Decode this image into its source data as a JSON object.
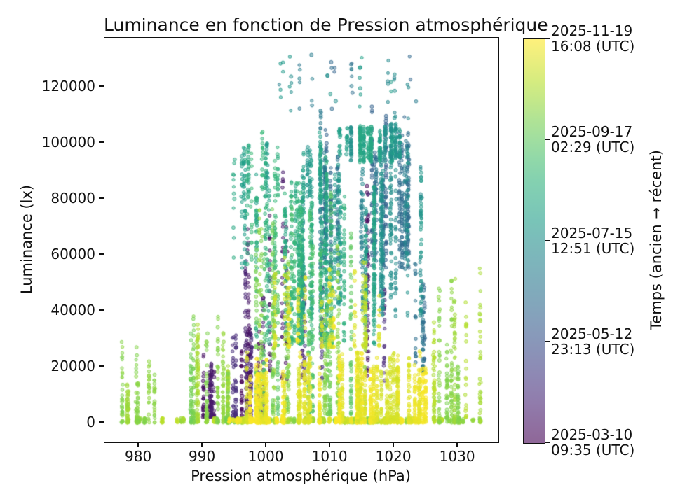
{
  "title": "Luminance en fonction de Pression atmosphérique",
  "chart_data": {
    "type": "scatter",
    "title": "Luminance en fonction de Pression atmosphérique",
    "xlabel": "Pression atmosphérique (hPa)",
    "ylabel": "Luminance (lx)",
    "xlim": [
      974.6,
      1036.36
    ],
    "ylim": [
      -7000,
      137500
    ],
    "xticks": [
      980,
      990,
      1000,
      1010,
      1020,
      1030
    ],
    "yticks": [
      0,
      20000,
      40000,
      60000,
      80000,
      100000,
      120000
    ],
    "grid": false,
    "colorbar": {
      "label": "Temps (ancien → récent)",
      "alpha": 0.6,
      "viridis_stops": [
        "#440154",
        "#482878",
        "#3e4989",
        "#31688e",
        "#26828e",
        "#1f9e89",
        "#35b779",
        "#6ece58",
        "#b5de2b",
        "#fde725"
      ],
      "ticks": [
        {
          "pos": 1.0,
          "lines": [
            "2025-11-19",
            "16:08 (UTC)"
          ]
        },
        {
          "pos": 0.75,
          "lines": [
            "2025-09-17",
            "02:29 (UTC)"
          ]
        },
        {
          "pos": 0.5,
          "lines": [
            "2025-07-15",
            "12:51 (UTC)"
          ]
        },
        {
          "pos": 0.25,
          "lines": [
            "2025-05-12",
            "23:13 (UTC)"
          ]
        },
        {
          "pos": 0.0,
          "lines": [
            "2025-03-10",
            "09:35 (UTC)"
          ]
        }
      ]
    },
    "point_style": {
      "radius": 2.3,
      "fill_alpha": 0.45,
      "edge_alpha": 0.85,
      "edge_width": 0.9
    },
    "seed": 1337,
    "clusters": [
      {
        "name": "west-purple",
        "n": 120,
        "p": [
          989.5,
          993.0
        ],
        "lum": [
          2000,
          27000
        ],
        "t": [
          0.02,
          0.12
        ],
        "streaks": 5,
        "pw": 1.6,
        "hmin": 0.6
      },
      {
        "name": "purple-low",
        "n": 260,
        "p": [
          994.5,
          1002.0
        ],
        "lum": [
          800,
          45000
        ],
        "t": [
          0.0,
          0.14
        ],
        "streaks": 8,
        "pw": 1.8,
        "hmin": 0.5
      },
      {
        "name": "purple-high",
        "n": 300,
        "p": [
          995.5,
          1018.5
        ],
        "lum": [
          15000,
          90000
        ],
        "t": [
          0.0,
          0.15
        ],
        "streaks": 13,
        "pw": 1.0,
        "hmin": 0.4
      },
      {
        "name": "blue-cloud",
        "n": 640,
        "p": [
          1007.5,
          1026.0
        ],
        "lum": [
          55000,
          114000
        ],
        "t": [
          0.3,
          0.44
        ],
        "streaks": 18,
        "pw": 1.0,
        "hmin": 0.5
      },
      {
        "name": "right-blue-mix",
        "n": 70,
        "p": [
          1023.2,
          1026.5
        ],
        "lum": [
          18000,
          64000
        ],
        "t": [
          0.32,
          0.45
        ],
        "streaks": 4,
        "pw": 1.2,
        "hmin": 0.6
      },
      {
        "name": "high-outliers",
        "n": 65,
        "p": [
          1002.0,
          1024.0
        ],
        "lum": [
          107000,
          131500
        ],
        "t": [
          0.32,
          0.58
        ],
        "streaks": 30,
        "pw": 1.0,
        "hmin": 1.0
      },
      {
        "name": "teal-cloud",
        "n": 700,
        "p": [
          1004.0,
          1024.5
        ],
        "lum": [
          38000,
          102000
        ],
        "t": [
          0.45,
          0.6
        ],
        "streaks": 22,
        "pw": 1.0,
        "hmin": 0.6
      },
      {
        "name": "teal-cap",
        "n": 400,
        "p": [
          1011.0,
          1024.0
        ],
        "lum": [
          93000,
          107500
        ],
        "t": [
          0.5,
          0.6
        ],
        "streaks": 15,
        "pw": 0.9,
        "hmin": 0.8
      },
      {
        "name": "teal-high-left",
        "n": 230,
        "p": [
          995.5,
          1011.0
        ],
        "lum": [
          80000,
          106000
        ],
        "t": [
          0.5,
          0.66
        ],
        "streaks": 13,
        "pw": 1.0,
        "hmin": 0.6
      },
      {
        "name": "teal-upper-sparse",
        "n": 170,
        "p": [
          994.5,
          1006.0
        ],
        "lum": [
          55000,
          100000
        ],
        "t": [
          0.52,
          0.68
        ],
        "streaks": 11,
        "pw": 1.0,
        "hmin": 0.6
      },
      {
        "name": "green-cloud",
        "n": 900,
        "p": [
          997.0,
          1017.0
        ],
        "lum": [
          28000,
          92000
        ],
        "t": [
          0.58,
          0.72
        ],
        "streaks": 26,
        "pw": 1.1,
        "hmin": 0.6
      },
      {
        "name": "lightgreen-mid",
        "n": 650,
        "p": [
          995.5,
          1016.0
        ],
        "lum": [
          3000,
          78000
        ],
        "t": [
          0.7,
          0.85
        ],
        "streaks": 18,
        "pw": 1.5,
        "hmin": 0.5
      },
      {
        "name": "zero-line-green",
        "n": 700,
        "p": [
          976.5,
          1034.0
        ],
        "lum": [
          0,
          1600
        ],
        "t": [
          0.78,
          0.9
        ],
        "streaks": 70,
        "pw": 1.0,
        "hmin": 1.0
      },
      {
        "name": "left-spikes",
        "n": 170,
        "p": [
          976.8,
          982.5
        ],
        "lum": [
          0,
          41000
        ],
        "t": [
          0.8,
          0.88
        ],
        "streaks": 7,
        "pw": 1.7,
        "hmin": 0.3
      },
      {
        "name": "west-spikes",
        "n": 400,
        "p": [
          988.0,
          995.0
        ],
        "lum": [
          0,
          52000
        ],
        "t": [
          0.78,
          0.88
        ],
        "streaks": 9,
        "pw": 1.7,
        "hmin": 0.3
      },
      {
        "name": "right-green",
        "n": 330,
        "p": [
          1026.0,
          1034.0
        ],
        "lum": [
          0,
          56000
        ],
        "t": [
          0.78,
          0.9
        ],
        "streaks": 9,
        "pw": 1.6,
        "hmin": 0.35
      },
      {
        "name": "zero-line-yellow",
        "n": 500,
        "p": [
          994.0,
          1024.5
        ],
        "lum": [
          0,
          1600
        ],
        "t": [
          0.93,
          1.0
        ],
        "streaks": 40,
        "pw": 1.0,
        "hmin": 1.0
      },
      {
        "name": "yellow-blob-left",
        "n": 400,
        "p": [
          996.5,
          1006.0
        ],
        "lum": [
          0,
          26000
        ],
        "t": [
          0.93,
          1.0
        ],
        "streaks": 12,
        "pw": 1.8,
        "hmin": 0.6
      },
      {
        "name": "yellow-blob",
        "n": 1100,
        "p": [
          1005.0,
          1025.5
        ],
        "lum": [
          0,
          27000
        ],
        "t": [
          0.93,
          1.0
        ],
        "streaks": 30,
        "pw": 1.6,
        "hmin": 0.7
      },
      {
        "name": "yellow-mid",
        "n": 260,
        "p": [
          1001.0,
          1018.0
        ],
        "lum": [
          27000,
          62000
        ],
        "t": [
          0.9,
          1.0
        ],
        "streaks": 16,
        "pw": 1.5,
        "hmin": 0.5
      }
    ]
  }
}
